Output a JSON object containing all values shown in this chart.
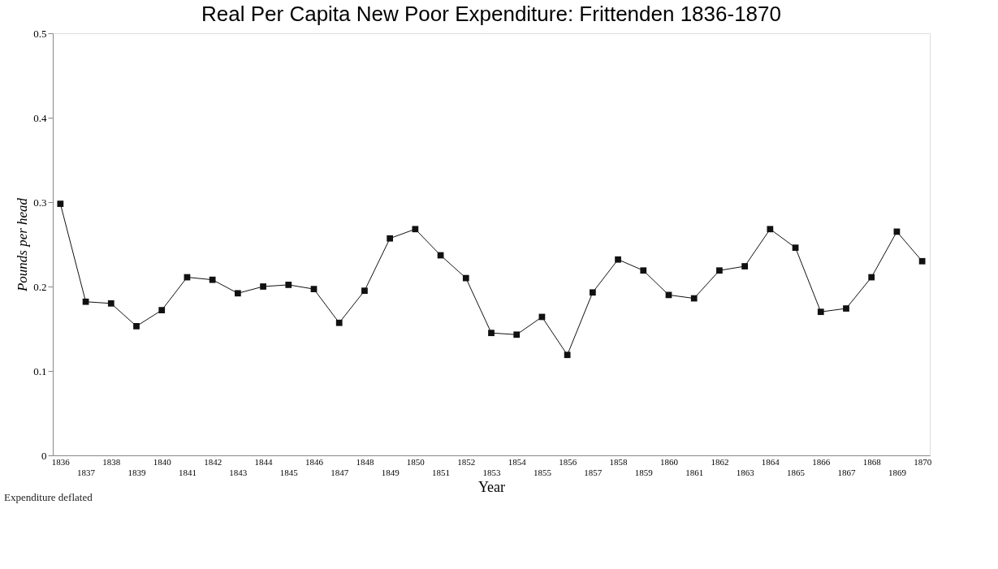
{
  "chart_data": {
    "type": "line",
    "title": "Real Per Capita New Poor Expenditure: Frittenden 1836-1870",
    "xlabel": "Year",
    "ylabel": "Pounds per head",
    "annotations": [
      "Expenditure deflated"
    ],
    "categories": [
      "1836",
      "1837",
      "1838",
      "1839",
      "1840",
      "1841",
      "1842",
      "1843",
      "1844",
      "1845",
      "1846",
      "1847",
      "1848",
      "1849",
      "1850",
      "1851",
      "1852",
      "1853",
      "1854",
      "1855",
      "1856",
      "1857",
      "1858",
      "1859",
      "1860",
      "1861",
      "1862",
      "1863",
      "1864",
      "1865",
      "1866",
      "1867",
      "1868",
      "1869",
      "1870"
    ],
    "series": [
      {
        "color": "#111111",
        "values": [
          0.298,
          0.182,
          0.18,
          0.153,
          0.172,
          0.211,
          0.208,
          0.192,
          0.2,
          0.202,
          0.197,
          0.157,
          0.195,
          0.257,
          0.268,
          0.237,
          0.21,
          0.145,
          0.143,
          0.164,
          0.119,
          0.193,
          0.232,
          0.219,
          0.19,
          0.186,
          0.219,
          0.224,
          0.268,
          0.246,
          0.17,
          0.174,
          0.211,
          0.265,
          0.23
        ]
      }
    ],
    "ylim": [
      0,
      0.5
    ],
    "yticks": [
      0,
      0.1,
      0.2,
      0.3,
      0.4,
      0.5
    ],
    "grid": false,
    "marker": "square",
    "line_style": "solid"
  }
}
